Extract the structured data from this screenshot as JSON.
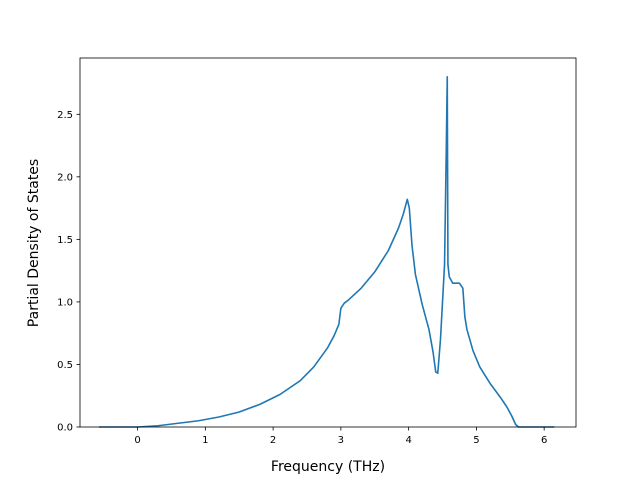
{
  "chart_data": {
    "type": "line",
    "title": "",
    "xlabel": "Frequency (THz)",
    "ylabel": "Partial Density of States",
    "xlim": [
      -0.85,
      6.47
    ],
    "ylim": [
      0.0,
      2.95
    ],
    "xticks": [
      0,
      1,
      2,
      3,
      4,
      5,
      6
    ],
    "yticks": [
      0.0,
      0.5,
      1.0,
      1.5,
      2.0,
      2.5
    ],
    "xtick_labels": [
      "0",
      "1",
      "2",
      "3",
      "4",
      "5",
      "6"
    ],
    "ytick_labels": [
      "0.0",
      "0.5",
      "1.0",
      "1.5",
      "2.0",
      "2.5"
    ],
    "grid": false,
    "legend": "none",
    "series_color": "#1f77b4",
    "series": [
      {
        "x": [
          -0.57,
          -0.3,
          0.0,
          0.3,
          0.6,
          0.9,
          1.2,
          1.5,
          1.8,
          2.1,
          2.4,
          2.6,
          2.8,
          2.9,
          2.97,
          3.0,
          3.05,
          3.1,
          3.3,
          3.5,
          3.7,
          3.85,
          3.92,
          3.98,
          4.01,
          4.05,
          4.1,
          4.2,
          4.3,
          4.36,
          4.4,
          4.43,
          4.47,
          4.5,
          4.53,
          4.555,
          4.57,
          4.58,
          4.6,
          4.65,
          4.75,
          4.8,
          4.83,
          4.86,
          4.95,
          5.05,
          5.2,
          5.35,
          5.45,
          5.52,
          5.58,
          5.62,
          5.8,
          6.0,
          6.15
        ],
        "y": [
          0.0,
          0.0,
          0.0,
          0.01,
          0.03,
          0.05,
          0.08,
          0.12,
          0.18,
          0.26,
          0.37,
          0.48,
          0.63,
          0.73,
          0.82,
          0.95,
          0.99,
          1.01,
          1.11,
          1.24,
          1.41,
          1.59,
          1.7,
          1.82,
          1.75,
          1.45,
          1.22,
          0.98,
          0.78,
          0.6,
          0.44,
          0.43,
          0.7,
          1.0,
          1.3,
          2.2,
          2.8,
          1.3,
          1.2,
          1.15,
          1.15,
          1.11,
          0.88,
          0.78,
          0.61,
          0.48,
          0.35,
          0.24,
          0.16,
          0.09,
          0.02,
          0.0,
          0.0,
          0.0,
          0.0
        ]
      }
    ]
  }
}
